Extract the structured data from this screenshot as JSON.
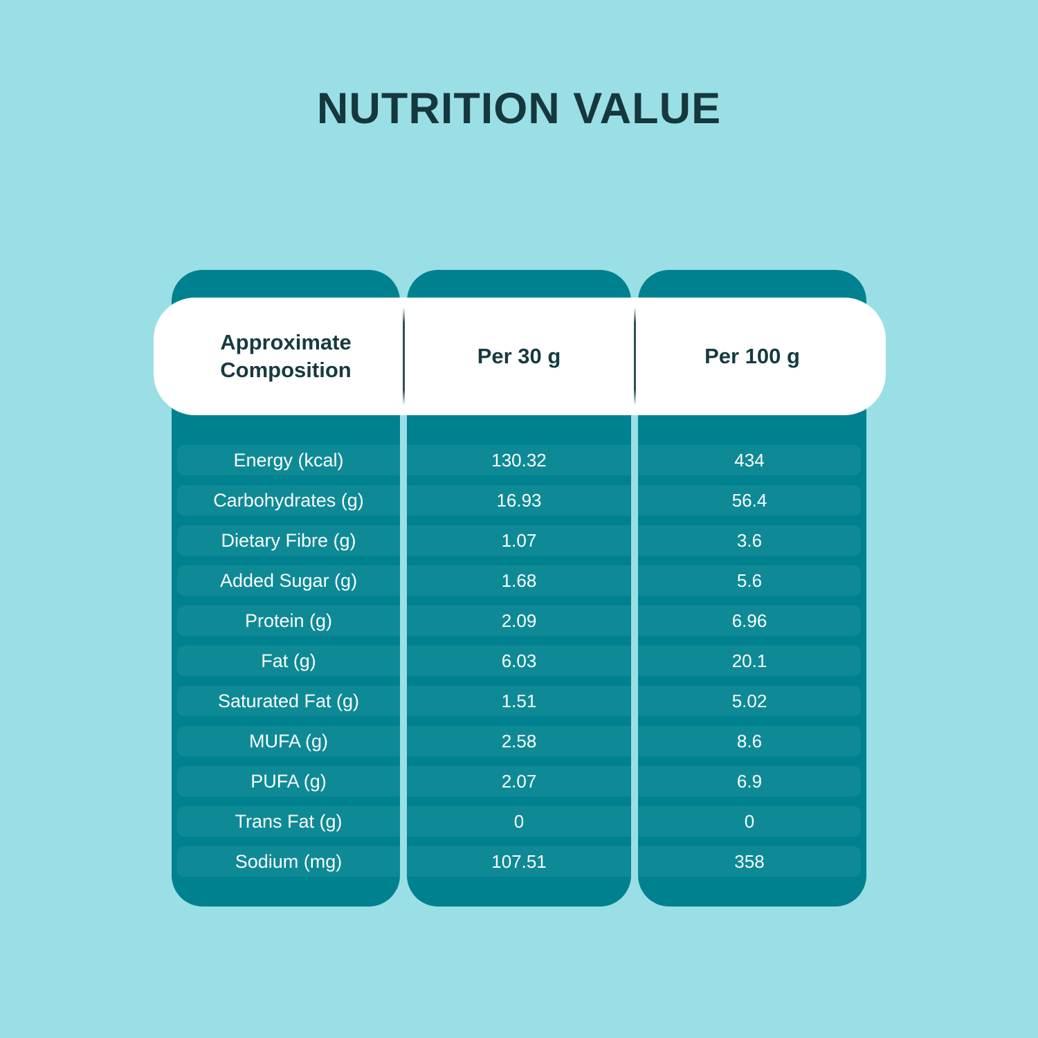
{
  "title": "NUTRITION VALUE",
  "colors": {
    "background": "#9adfe5",
    "column": "#00818f",
    "row_band": "#0e8a96",
    "header_background": "#ffffff",
    "dark_text": "#163a40",
    "row_text": "#ffffff"
  },
  "headers": [
    "Approximate Composition",
    "Per 30 g",
    "Per 100 g"
  ],
  "rows": [
    {
      "label": "Energy (kcal)",
      "per30": "130.32",
      "per100": "434"
    },
    {
      "label": "Carbohydrates (g)",
      "per30": "16.93",
      "per100": "56.4"
    },
    {
      "label": "Dietary Fibre (g)",
      "per30": "1.07",
      "per100": "3.6"
    },
    {
      "label": "Added Sugar (g)",
      "per30": "1.68",
      "per100": "5.6"
    },
    {
      "label": "Protein (g)",
      "per30": "2.09",
      "per100": "6.96"
    },
    {
      "label": "Fat (g)",
      "per30": "6.03",
      "per100": "20.1"
    },
    {
      "label": "Saturated Fat (g)",
      "per30": "1.51",
      "per100": "5.02"
    },
    {
      "label": "MUFA (g)",
      "per30": "2.58",
      "per100": "8.6"
    },
    {
      "label": "PUFA (g)",
      "per30": "2.07",
      "per100": "6.9"
    },
    {
      "label": "Trans Fat (g)",
      "per30": "0",
      "per100": "0"
    },
    {
      "label": "Sodium (mg)",
      "per30": "107.51",
      "per100": "358"
    }
  ],
  "chart_data": {
    "type": "table",
    "title": "NUTRITION VALUE",
    "columns": [
      "Approximate Composition",
      "Per 30 g",
      "Per 100 g"
    ],
    "rows": [
      [
        "Energy (kcal)",
        130.32,
        434
      ],
      [
        "Carbohydrates (g)",
        16.93,
        56.4
      ],
      [
        "Dietary Fibre (g)",
        1.07,
        3.6
      ],
      [
        "Added Sugar (g)",
        1.68,
        5.6
      ],
      [
        "Protein (g)",
        2.09,
        6.96
      ],
      [
        "Fat (g)",
        6.03,
        20.1
      ],
      [
        "Saturated Fat (g)",
        1.51,
        5.02
      ],
      [
        "MUFA (g)",
        2.58,
        8.6
      ],
      [
        "PUFA (g)",
        2.07,
        6.9
      ],
      [
        "Trans Fat (g)",
        0,
        0
      ],
      [
        "Sodium (mg)",
        107.51,
        358
      ]
    ]
  }
}
